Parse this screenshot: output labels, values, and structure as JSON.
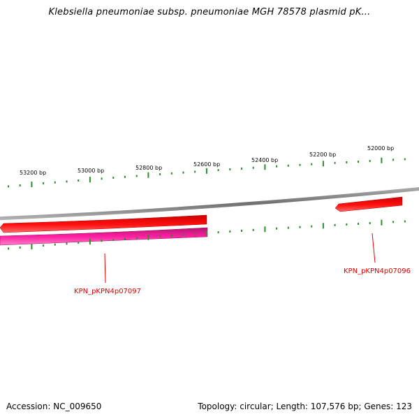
{
  "title": "Klebsiella pneumoniae subsp. pneumoniae MGH 78578 plasmid pK...",
  "footer": {
    "accession": "Accession: NC_009650",
    "summary": "Topology: circular; Length: 107,576 bp; Genes: 123"
  },
  "scale": {
    "labels": [
      "53200 bp",
      "53000 bp",
      "52800 bp",
      "52600 bp",
      "52400 bp",
      "52200 bp",
      "52000 bp"
    ]
  },
  "genes": [
    {
      "label": "KPN_pKPN4p07097",
      "color": "#e00000"
    },
    {
      "label": "KPN_pKPN4p07096",
      "color": "#e00000"
    }
  ],
  "colors": {
    "backbone": "#8a8a8a",
    "cds_forward": "#ff0000",
    "cds_reverse": "#e0138c",
    "ticks": "#2e8b2e"
  }
}
